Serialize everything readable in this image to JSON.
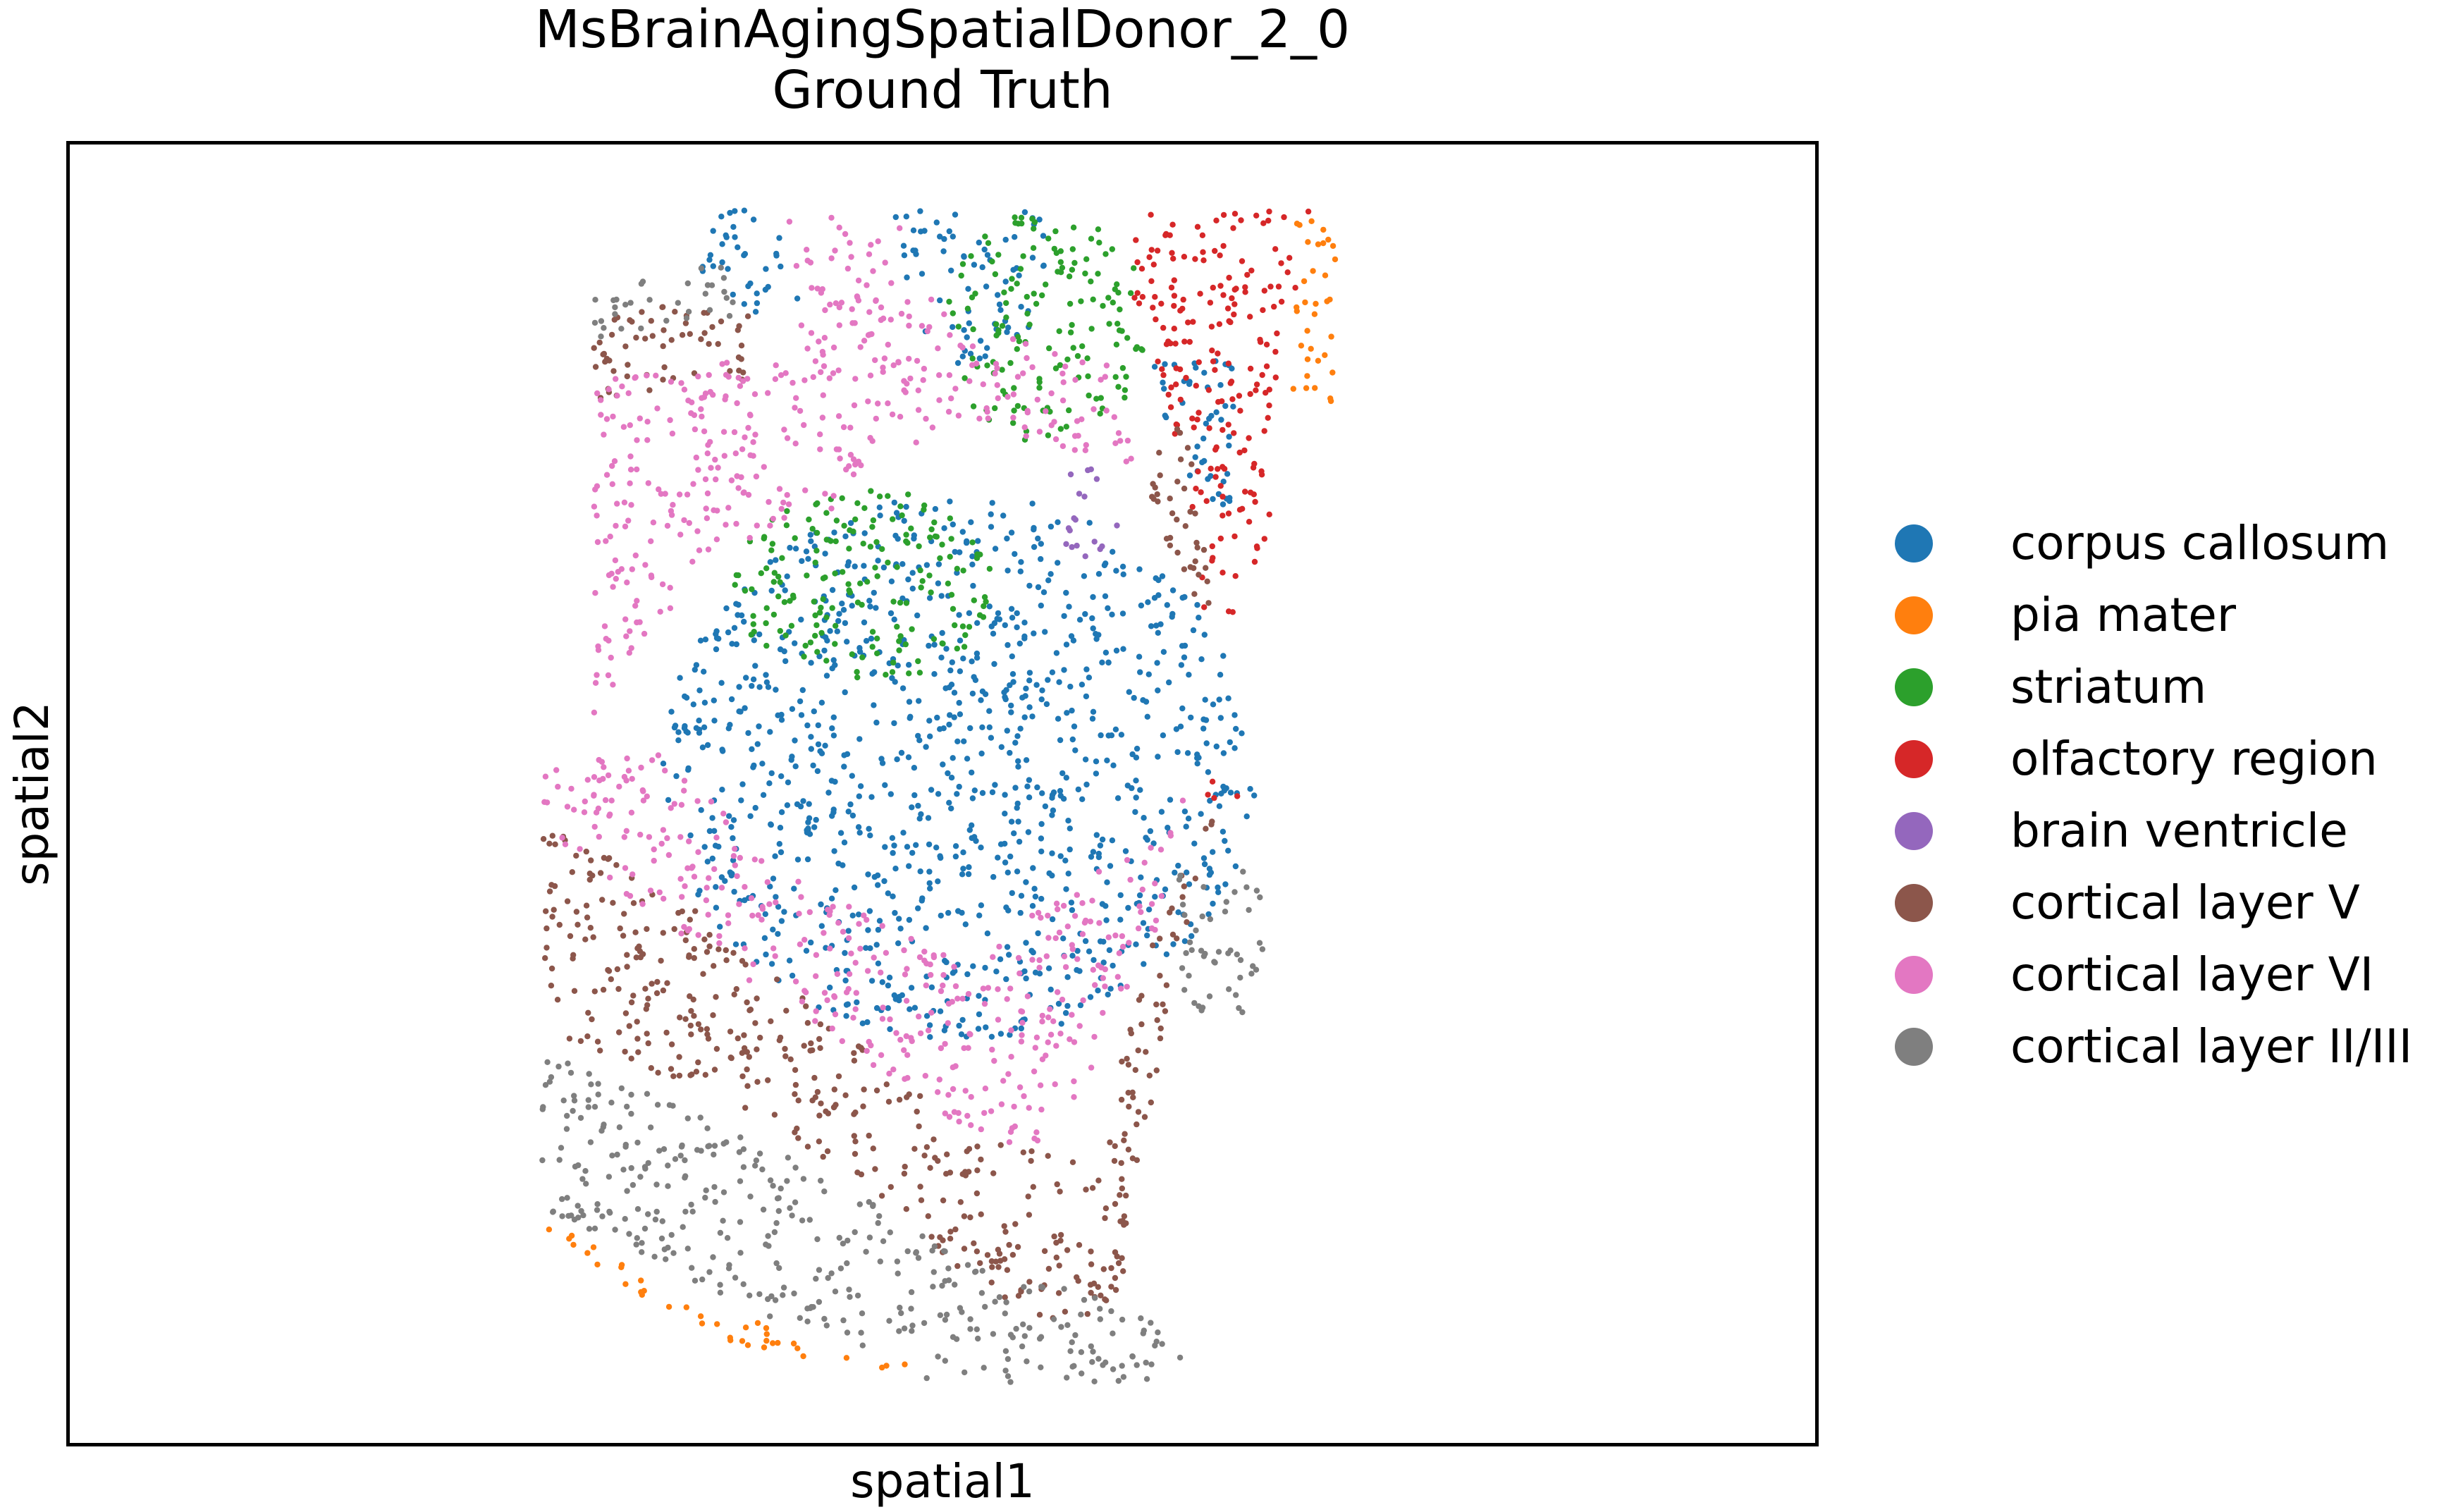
{
  "chart_data": {
    "type": "scatter",
    "title": "MsBrainAgingSpatialDonor_2_0",
    "subtitle": "Ground Truth",
    "xlabel": "spatial1",
    "ylabel": "spatial2",
    "x_ticks": [],
    "y_ticks": [],
    "grid": false,
    "legend_position": "right",
    "xlim": [
      0,
      1
    ],
    "ylim": [
      0,
      1
    ],
    "series": [
      {
        "name": "corpus callosum",
        "color": "#1f77b4",
        "regions": [
          {
            "kind": "ellipse",
            "cx": 0.51,
            "cy": 0.52,
            "rx": 0.17,
            "ry": 0.21
          },
          {
            "kind": "polygon",
            "points": [
              [
                0.365,
                0.95
              ],
              [
                0.41,
                0.95
              ],
              [
                0.42,
                0.88
              ],
              [
                0.39,
                0.87
              ],
              [
                0.36,
                0.9
              ]
            ]
          },
          {
            "kind": "polygon",
            "points": [
              [
                0.47,
                0.95
              ],
              [
                0.56,
                0.95
              ],
              [
                0.56,
                0.85
              ],
              [
                0.51,
                0.83
              ],
              [
                0.48,
                0.86
              ]
            ]
          },
          {
            "kind": "polygon",
            "points": [
              [
                0.62,
                0.84
              ],
              [
                0.67,
                0.84
              ],
              [
                0.67,
                0.72
              ],
              [
                0.63,
                0.72
              ]
            ]
          }
        ]
      },
      {
        "name": "pia mater",
        "color": "#ff7f0e",
        "regions": [
          {
            "kind": "polygon",
            "points": [
              [
                0.27,
                0.18
              ],
              [
                0.28,
                0.17
              ],
              [
                0.38,
                0.1
              ],
              [
                0.48,
                0.06
              ],
              [
                0.48,
                0.05
              ],
              [
                0.37,
                0.08
              ],
              [
                0.27,
                0.16
              ]
            ]
          },
          {
            "kind": "polygon",
            "points": [
              [
                0.7,
                0.95
              ],
              [
                0.725,
                0.95
              ],
              [
                0.725,
                0.8
              ],
              [
                0.7,
                0.8
              ]
            ]
          }
        ]
      },
      {
        "name": "striatum",
        "color": "#2ca02c",
        "regions": [
          {
            "kind": "ellipse",
            "cx": 0.455,
            "cy": 0.66,
            "rx": 0.075,
            "ry": 0.075
          },
          {
            "kind": "ellipse",
            "cx": 0.56,
            "cy": 0.86,
            "rx": 0.058,
            "ry": 0.09
          }
        ]
      },
      {
        "name": "olfactory region",
        "color": "#d62728",
        "regions": [
          {
            "kind": "polygon",
            "points": [
              [
                0.605,
                0.95
              ],
              [
                0.71,
                0.95
              ],
              [
                0.69,
                0.7
              ],
              [
                0.66,
                0.62
              ],
              [
                0.65,
                0.62
              ],
              [
                0.64,
                0.75
              ],
              [
                0.605,
                0.88
              ]
            ]
          },
          {
            "kind": "polygon",
            "points": [
              [
                0.65,
                0.51
              ],
              [
                0.67,
                0.51
              ],
              [
                0.67,
                0.49
              ],
              [
                0.65,
                0.49
              ]
            ]
          }
        ]
      },
      {
        "name": "brain ventricle",
        "color": "#9467bd",
        "regions": [
          {
            "kind": "polygon",
            "points": [
              [
                0.57,
                0.75
              ],
              [
                0.6,
                0.75
              ],
              [
                0.6,
                0.67
              ],
              [
                0.57,
                0.69
              ]
            ]
          }
        ]
      },
      {
        "name": "cortical layer V",
        "color": "#8c564b",
        "regions": [
          {
            "kind": "polygon",
            "points": [
              [
                0.3,
                0.88
              ],
              [
                0.39,
                0.88
              ],
              [
                0.39,
                0.82
              ],
              [
                0.3,
                0.8
              ]
            ]
          },
          {
            "kind": "polygon",
            "points": [
              [
                0.27,
                0.48
              ],
              [
                0.34,
                0.43
              ],
              [
                0.45,
                0.31
              ],
              [
                0.52,
                0.23
              ],
              [
                0.59,
                0.23
              ],
              [
                0.62,
                0.4
              ],
              [
                0.66,
                0.5
              ],
              [
                0.64,
                0.4
              ],
              [
                0.6,
                0.09
              ],
              [
                0.54,
                0.1
              ],
              [
                0.46,
                0.19
              ],
              [
                0.38,
                0.26
              ],
              [
                0.27,
                0.32
              ]
            ]
          },
          {
            "kind": "polygon",
            "points": [
              [
                0.62,
                0.79
              ],
              [
                0.64,
                0.79
              ],
              [
                0.66,
                0.62
              ],
              [
                0.62,
                0.7
              ]
            ]
          }
        ]
      },
      {
        "name": "cortical layer VI",
        "color": "#e377c2",
        "regions": [
          {
            "kind": "polygon",
            "points": [
              [
                0.3,
                0.82
              ],
              [
                0.42,
                0.84
              ],
              [
                0.41,
                0.95
              ],
              [
                0.48,
                0.95
              ],
              [
                0.47,
                0.9
              ],
              [
                0.52,
                0.86
              ],
              [
                0.6,
                0.83
              ],
              [
                0.61,
                0.75
              ],
              [
                0.51,
                0.79
              ],
              [
                0.44,
                0.72
              ],
              [
                0.38,
                0.69
              ],
              [
                0.33,
                0.62
              ],
              [
                0.3,
                0.56
              ]
            ]
          },
          {
            "kind": "polygon",
            "points": [
              [
                0.27,
                0.53
              ],
              [
                0.34,
                0.53
              ],
              [
                0.42,
                0.43
              ],
              [
                0.52,
                0.38
              ],
              [
                0.61,
                0.46
              ],
              [
                0.64,
                0.5
              ],
              [
                0.62,
                0.38
              ],
              [
                0.56,
                0.22
              ],
              [
                0.5,
                0.25
              ],
              [
                0.42,
                0.33
              ],
              [
                0.35,
                0.39
              ],
              [
                0.27,
                0.47
              ]
            ]
          }
        ]
      },
      {
        "name": "cortical layer II/III",
        "color": "#7f7f7f",
        "regions": [
          {
            "kind": "polygon",
            "points": [
              [
                0.3,
                0.89
              ],
              [
                0.38,
                0.91
              ],
              [
                0.39,
                0.87
              ],
              [
                0.3,
                0.85
              ]
            ]
          },
          {
            "kind": "polygon",
            "points": [
              [
                0.27,
                0.3
              ],
              [
                0.37,
                0.25
              ],
              [
                0.48,
                0.17
              ],
              [
                0.55,
                0.13
              ],
              [
                0.61,
                0.11
              ],
              [
                0.64,
                0.06
              ],
              [
                0.6,
                0.04
              ],
              [
                0.48,
                0.05
              ],
              [
                0.38,
                0.11
              ],
              [
                0.27,
                0.18
              ]
            ]
          },
          {
            "kind": "polygon",
            "points": [
              [
                0.63,
                0.44
              ],
              [
                0.68,
                0.44
              ],
              [
                0.69,
                0.38
              ],
              [
                0.68,
                0.33
              ],
              [
                0.64,
                0.33
              ]
            ]
          }
        ]
      }
    ]
  }
}
